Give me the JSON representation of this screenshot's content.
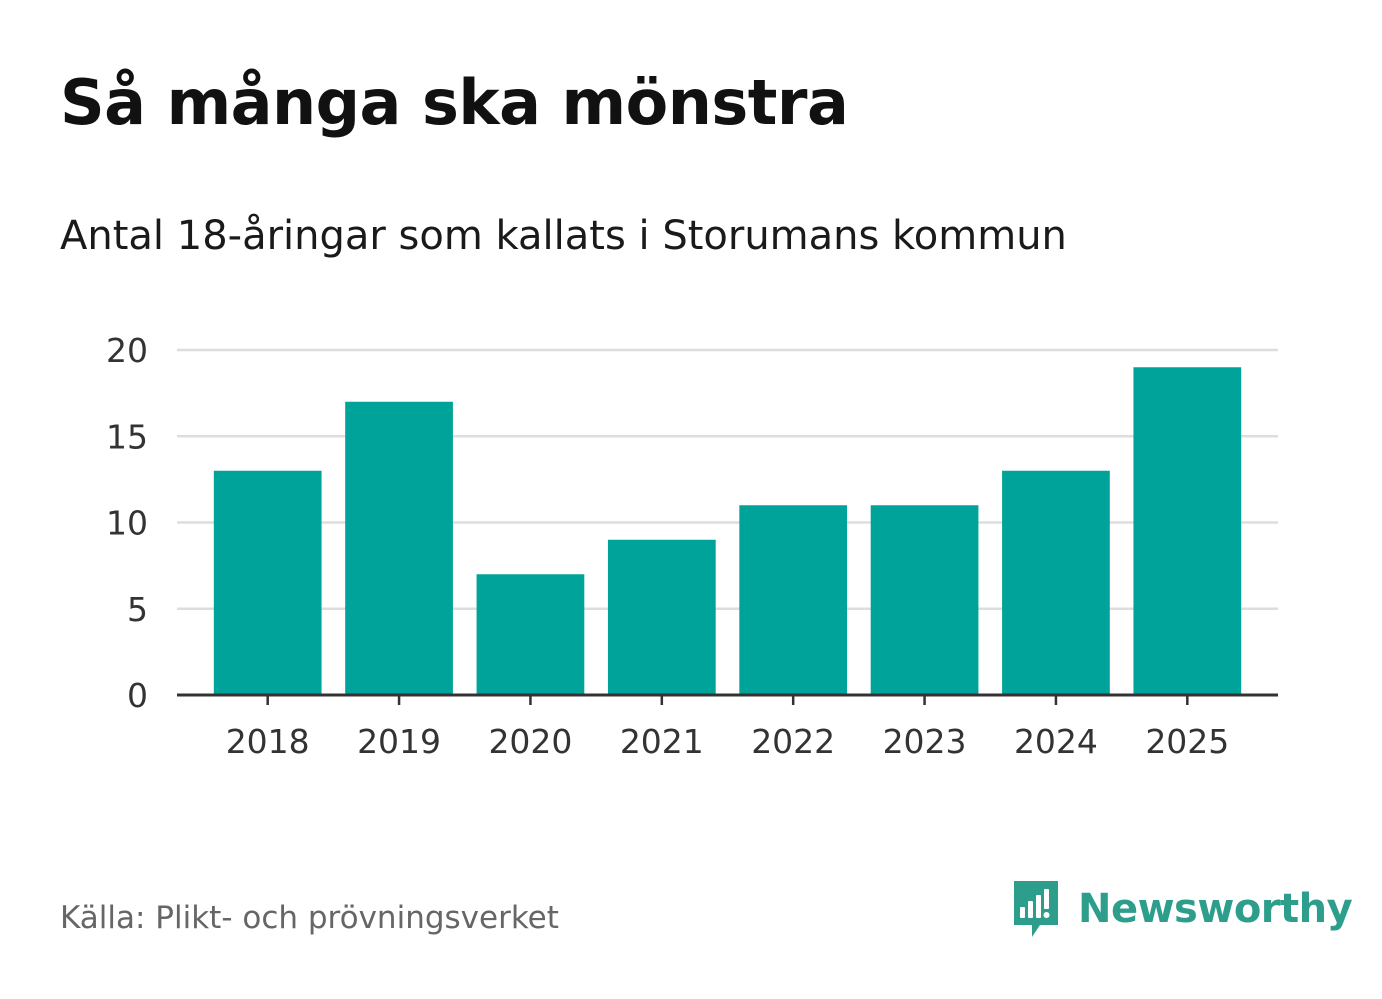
{
  "title": "Så många ska mönstra",
  "subtitle": "Antal 18-åringar som kallats i Storumans kommun",
  "source": "Källa: Plikt- och prövningsverket",
  "brand": {
    "name": "Newsworthy",
    "icon": "newsworthy-logo-icon",
    "color": "#2e9e8c"
  },
  "colors": {
    "bar": "#00a39a",
    "grid": "#dddddd",
    "axis": "#333333"
  },
  "chart_data": {
    "type": "bar",
    "title": "Så många ska mönstra",
    "subtitle": "Antal 18-åringar som kallats i Storumans kommun",
    "xlabel": "",
    "ylabel": "",
    "categories": [
      "2018",
      "2019",
      "2020",
      "2021",
      "2022",
      "2023",
      "2024",
      "2025"
    ],
    "values": [
      13,
      17,
      7,
      9,
      11,
      11,
      13,
      19
    ],
    "ylim": [
      0,
      20
    ],
    "yticks": [
      0,
      5,
      10,
      15,
      20
    ],
    "grid": true,
    "legend": "none"
  }
}
